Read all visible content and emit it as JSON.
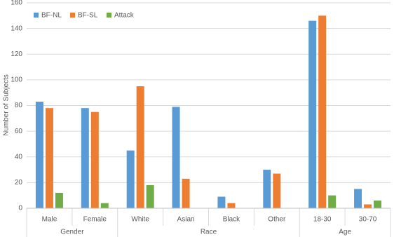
{
  "chart_data": {
    "type": "bar",
    "y_label": "Number of Subjects",
    "category_groups": [
      {
        "name": "Gender",
        "categories": [
          "Male",
          "Female"
        ]
      },
      {
        "name": "Race",
        "categories": [
          "White",
          "Asian",
          "Black",
          "Other"
        ]
      },
      {
        "name": "Age",
        "categories": [
          "18-30",
          "30-70"
        ]
      }
    ],
    "series": [
      {
        "name": "BF-NL",
        "color": "#5b9bd5",
        "values": [
          83,
          78,
          45,
          79,
          9,
          30,
          146,
          15
        ]
      },
      {
        "name": "BF-SL",
        "color": "#ed7d31",
        "values": [
          78,
          75,
          95,
          23,
          4,
          27,
          150,
          3
        ]
      },
      {
        "name": "Attack",
        "color": "#70ad47",
        "values": [
          12,
          4,
          18,
          0,
          0,
          0,
          10,
          6
        ]
      }
    ],
    "ylim": [
      0,
      160
    ],
    "yticks": [
      0,
      20,
      40,
      60,
      80,
      100,
      120,
      140,
      160
    ],
    "grid": true,
    "legend": "top-left"
  }
}
